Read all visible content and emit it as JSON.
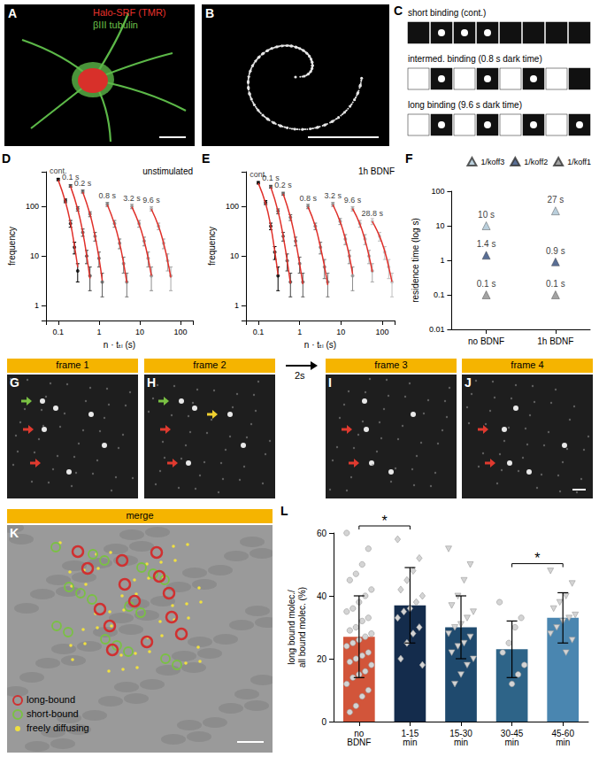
{
  "chart_data": [
    {
      "type": "scatter",
      "title": "D",
      "annotations": [
        "unstimulated"
      ],
      "xlabel": "n · tₜₗ (s)",
      "ylabel": "frequency",
      "log": true,
      "xlim": [
        0.05,
        200
      ],
      "xticks": [
        0.1,
        1,
        10,
        100
      ],
      "ylim": [
        0.5,
        500
      ],
      "yticks": [
        1,
        10,
        100
      ],
      "series": [
        {
          "name": "cont.",
          "color": "#000000",
          "x": [
            0.1,
            0.15,
            0.2,
            0.25,
            0.3
          ],
          "values": [
            350,
            130,
            45,
            15,
            5
          ],
          "fit": [
            340,
            125,
            46,
            16,
            6
          ],
          "errors": [
            19,
            11,
            7,
            4,
            2
          ]
        },
        {
          "name": "0.1 s",
          "color": "#444444",
          "x": [
            0.2,
            0.3,
            0.4,
            0.5,
            0.6
          ],
          "values": [
            260,
            90,
            30,
            10,
            4
          ],
          "fit": [
            255,
            88,
            30,
            10,
            3.5
          ],
          "errors": [
            16,
            9,
            5,
            3,
            2
          ]
        },
        {
          "name": "0.2 s",
          "color": "#5e5e5e",
          "x": [
            0.4,
            0.6,
            0.8,
            1.0,
            1.2
          ],
          "values": [
            200,
            70,
            25,
            9,
            3
          ],
          "fit": [
            195,
            70,
            25,
            9,
            3.2
          ],
          "errors": [
            14,
            8,
            5,
            3,
            1.5
          ]
        },
        {
          "name": "0.8 s",
          "color": "#777777",
          "x": [
            1.6,
            2.4,
            3.2,
            4.0,
            4.8
          ],
          "values": [
            110,
            45,
            18,
            7,
            3
          ],
          "fit": [
            108,
            44,
            18,
            7.2,
            2.9
          ],
          "errors": [
            10,
            7,
            4,
            2.5,
            1.5
          ]
        },
        {
          "name": "3.2 s",
          "color": "#8f8f8f",
          "x": [
            6.4,
            9.6,
            12.8,
            16,
            19.2
          ],
          "values": [
            100,
            45,
            20,
            9,
            4
          ],
          "fit": [
            98,
            44,
            20,
            9,
            4
          ],
          "errors": [
            10,
            7,
            4,
            3,
            2
          ]
        },
        {
          "name": "9.6 s",
          "color": "#a8a8a8",
          "x": [
            19.2,
            28.8,
            38.4,
            48,
            57.6
          ],
          "values": [
            90,
            40,
            18,
            8,
            4
          ],
          "fit": [
            88,
            40,
            18,
            8,
            3.7
          ],
          "errors": [
            9,
            6,
            4,
            3,
            2
          ]
        }
      ]
    },
    {
      "type": "scatter",
      "title": "E",
      "annotations": [
        "1h BDNF"
      ],
      "xlabel": "n · tₜₗ (s)",
      "ylabel": "frequency",
      "log": true,
      "xlim": [
        0.05,
        200
      ],
      "xticks": [
        0.1,
        1,
        10,
        100
      ],
      "ylim": [
        0.5,
        500
      ],
      "yticks": [
        1,
        10,
        100
      ],
      "series": [
        {
          "name": "cont.",
          "color": "#000000",
          "x": [
            0.1,
            0.15,
            0.2,
            0.25,
            0.3
          ],
          "values": [
            300,
            120,
            40,
            12,
            4
          ],
          "fit": [
            295,
            115,
            40,
            12.5,
            4.2
          ],
          "errors": [
            17,
            11,
            6,
            3.5,
            2
          ]
        },
        {
          "name": "0.1 s",
          "color": "#444444",
          "x": [
            0.2,
            0.3,
            0.4,
            0.5,
            0.6
          ],
          "values": [
            250,
            80,
            25,
            8,
            3
          ],
          "fit": [
            245,
            80,
            25,
            8,
            2.8
          ],
          "errors": [
            16,
            9,
            5,
            3,
            1.5
          ]
        },
        {
          "name": "0.2 s",
          "color": "#5e5e5e",
          "x": [
            0.4,
            0.6,
            0.8,
            1.0,
            1.2
          ],
          "values": [
            180,
            60,
            20,
            7,
            3
          ],
          "fit": [
            178,
            60,
            20,
            7,
            2.7
          ],
          "errors": [
            13,
            8,
            4,
            2.5,
            1.5
          ]
        },
        {
          "name": "0.8 s",
          "color": "#777777",
          "x": [
            1.6,
            2.4,
            3.2,
            4.0,
            4.8
          ],
          "values": [
            100,
            40,
            15,
            6,
            3
          ],
          "fit": [
            98,
            40,
            15,
            6.2,
            2.6
          ],
          "errors": [
            10,
            6,
            4,
            2.5,
            1.5
          ]
        },
        {
          "name": "3.2 s",
          "color": "#8f8f8f",
          "x": [
            6.4,
            9.6,
            12.8,
            16,
            19.2
          ],
          "values": [
            110,
            50,
            22,
            10,
            4
          ],
          "fit": [
            108,
            49,
            22,
            10,
            4.3
          ],
          "errors": [
            10,
            7,
            5,
            3,
            2
          ]
        },
        {
          "name": "9.6 s",
          "color": "#a8a8a8",
          "x": [
            19.2,
            28.8,
            38.4,
            48,
            57.6
          ],
          "values": [
            90,
            45,
            22,
            10,
            5
          ],
          "fit": [
            90,
            44,
            21,
            10,
            4.8
          ],
          "errors": [
            9,
            7,
            5,
            3,
            2
          ]
        },
        {
          "name": "28.8 s",
          "color": "#c0c0c0",
          "x": [
            57.6,
            86.4,
            115.2,
            144,
            172.8
          ],
          "values": [
            50,
            25,
            12,
            6,
            3
          ],
          "fit": [
            50,
            25,
            12.5,
            6,
            3
          ],
          "errors": [
            7,
            5,
            3.5,
            2.5,
            1.5
          ]
        }
      ]
    },
    {
      "type": "scatter",
      "title": "F",
      "ylabel": "residence time (log s)",
      "log": "y",
      "legend": "top",
      "data_labels": true,
      "categories": [
        "no BDNF",
        "1h BDNF"
      ],
      "ylim": [
        0.01,
        100
      ],
      "yticks": [
        0.01,
        0.1,
        1,
        10,
        100
      ],
      "series": [
        {
          "name": "1/koff3",
          "color": "#a9c3d3",
          "marker": "triangle",
          "values": [
            10,
            27
          ],
          "value_labels": [
            "10 s",
            "27 s"
          ]
        },
        {
          "name": "1/koff2",
          "color": "#2f4a7a",
          "marker": "triangle",
          "values": [
            1.4,
            0.9
          ],
          "value_labels": [
            "1.4 s",
            "0.9 s"
          ]
        },
        {
          "name": "1/koff1",
          "color": "#8c8c8c",
          "marker": "triangle",
          "values": [
            0.1,
            0.1
          ],
          "value_labels": [
            "0.1 s",
            "0.1 s"
          ]
        }
      ]
    },
    {
      "type": "bar",
      "title": "L",
      "ylabel": "long bound molec./\nall bound molec. (%)",
      "categories": [
        "no BDNF",
        "1-15 min",
        "15-30 min",
        "30-45 min",
        "45-60 min"
      ],
      "values": [
        27,
        37,
        30,
        23,
        33
      ],
      "errors": [
        13,
        12,
        10,
        9,
        8
      ],
      "colors": [
        "#d2553a",
        "#142c4c",
        "#1f4a6e",
        "#2e6488",
        "#4a86b0"
      ],
      "points": [
        [
          60,
          55,
          50,
          47,
          45,
          42,
          40,
          38,
          36,
          35,
          33,
          32,
          30,
          29,
          28,
          27,
          26,
          25,
          24,
          22,
          21,
          20,
          19,
          18,
          16,
          15,
          14,
          12,
          10,
          8,
          5,
          3
        ],
        [
          58,
          52,
          48,
          45,
          42,
          40,
          38,
          36,
          35,
          33,
          30,
          28,
          25,
          20,
          18
        ],
        [
          55,
          50,
          45,
          40,
          37,
          35,
          33,
          31,
          30,
          28,
          27,
          25,
          24,
          22,
          20,
          18,
          15,
          12
        ],
        [
          38,
          33,
          30,
          25,
          22,
          18,
          15,
          12
        ],
        [
          48,
          44,
          40,
          38,
          36,
          34,
          33,
          32,
          30,
          28,
          26,
          22
        ]
      ],
      "ylim": [
        0,
        60
      ],
      "yticks": [
        0,
        20,
        40,
        60
      ],
      "annotations": [
        {
          "text": "*",
          "between": [
            "no BDNF",
            "1-15 min"
          ]
        },
        {
          "text": "*",
          "between": [
            "30-45 min",
            "45-60 min"
          ]
        }
      ]
    }
  ],
  "image_panels": {
    "A": {
      "label": "A",
      "channels": [
        {
          "text": "Halo-SRF (TMR)",
          "color": "#e8322c"
        },
        {
          "text": "βIII tubulin",
          "color": "#6cc04a"
        }
      ]
    },
    "B": {
      "label": "B"
    },
    "C": {
      "label": "C",
      "rows": [
        "short binding (cont.)",
        "intermed. binding (0.8 s dark time)",
        "long binding (9.6 s dark time)"
      ]
    },
    "frames": {
      "panels": [
        {
          "label": "G",
          "header": "frame 1"
        },
        {
          "label": "H",
          "header": "frame 2"
        },
        {
          "label": "I",
          "header": "frame 3"
        },
        {
          "label": "J",
          "header": "frame 4"
        }
      ],
      "gap": "2s"
    },
    "K": {
      "label": "K",
      "header": "merge",
      "legend": [
        {
          "text": "long-bound",
          "color": "#d03030"
        },
        {
          "text": "short-bound",
          "color": "#7ac143"
        },
        {
          "text": "freely diffusing",
          "color": "#f0e040"
        }
      ]
    }
  }
}
